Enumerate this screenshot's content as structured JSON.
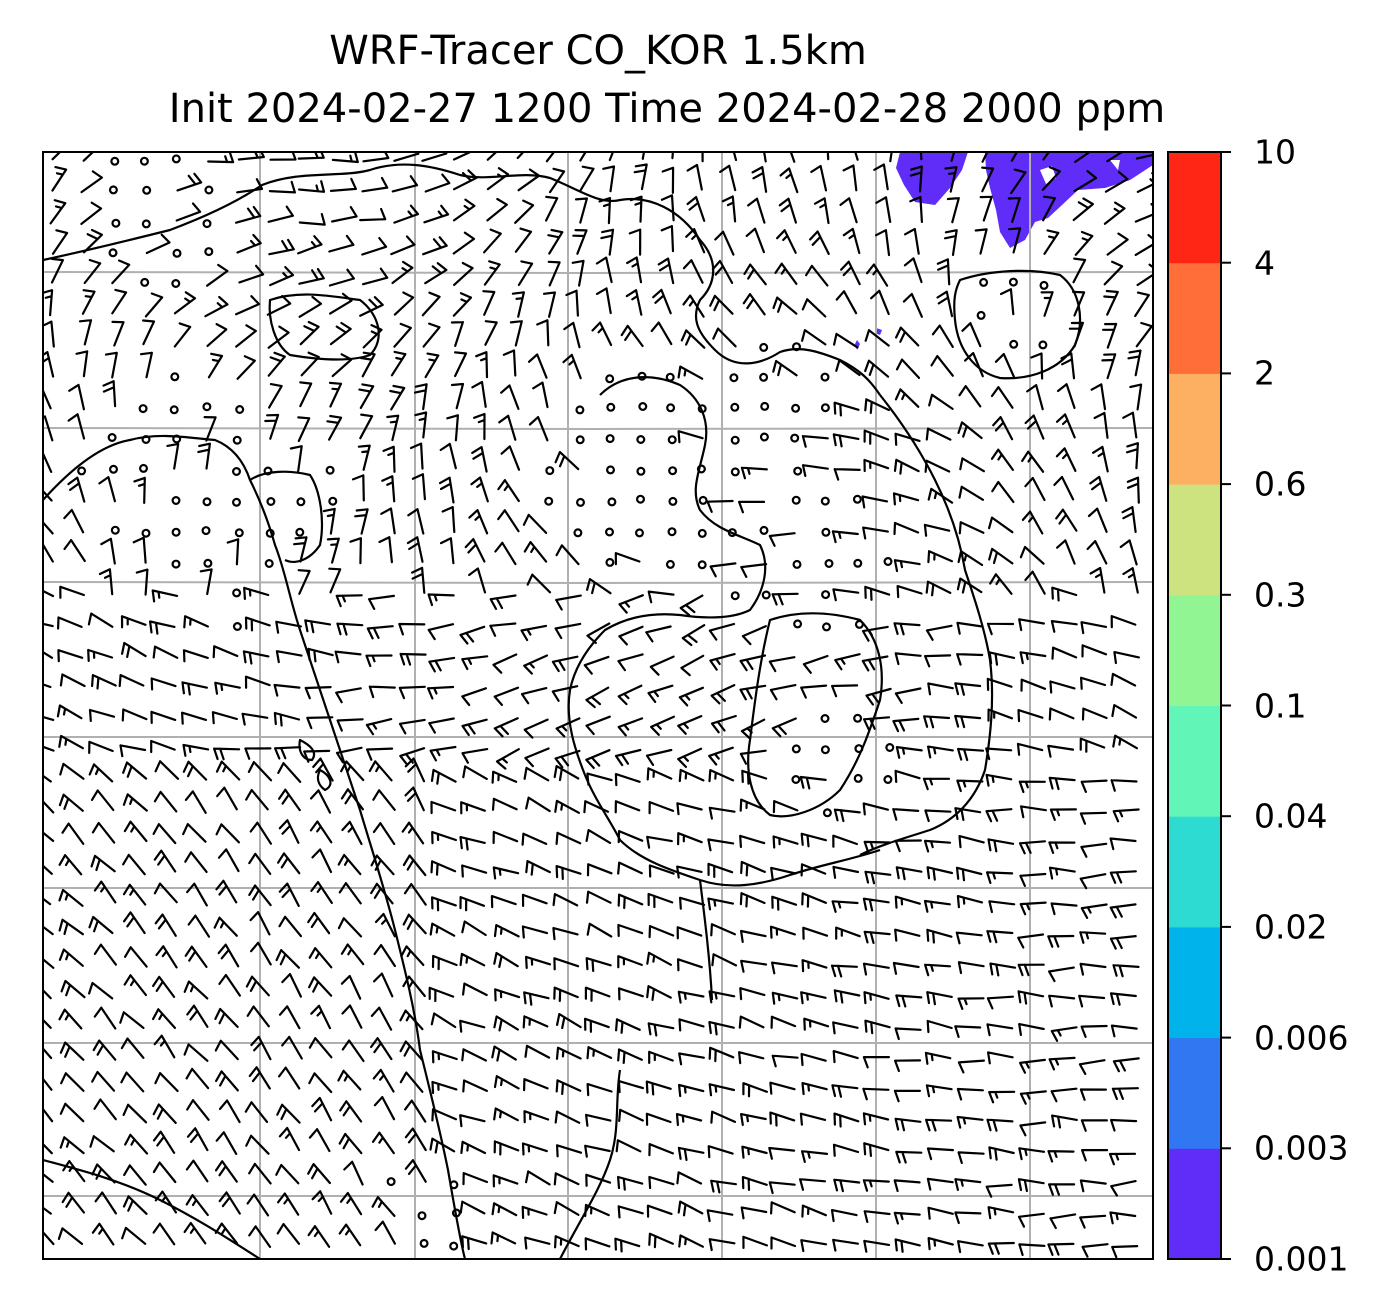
{
  "title_line1": "WRF-Tracer CO_KOR 1.5km",
  "title_line2": "Init 2024-02-27 1200 Time 2024-02-28 2000 ppm",
  "colorbar": {
    "levels": [
      "0.001",
      "0.003",
      "0.006",
      "0.02",
      "0.04",
      "0.1",
      "0.3",
      "0.6",
      "2",
      "4",
      "10"
    ],
    "colors": [
      "#5f2cf8",
      "#3277f2",
      "#00b4eb",
      "#2edbd3",
      "#61f6b8",
      "#92f593",
      "#cde37f",
      "#fdaf62",
      "#ff6d39",
      "#ff2616"
    ]
  },
  "map": {
    "field": "CO_KOR tracer concentration",
    "units": "ppm",
    "filled_level_visible": "0.001",
    "overlays": [
      "coastlines",
      "lat-lon gridlines",
      "wind barbs",
      "calm wind circles"
    ]
  }
}
